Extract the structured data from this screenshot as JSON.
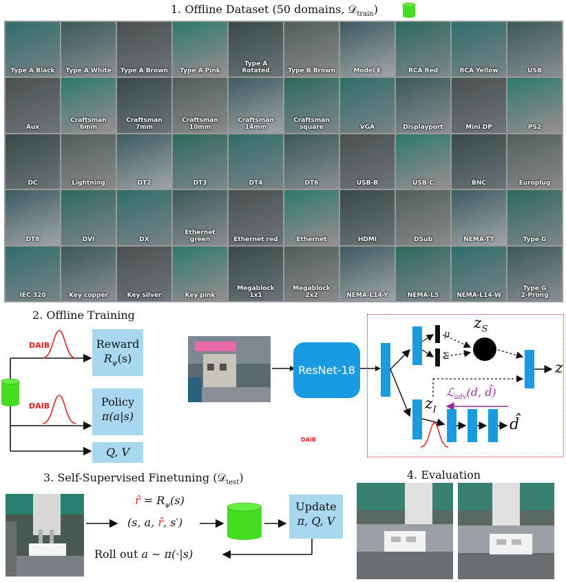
{
  "titles": {
    "s1": "1. Offline Dataset (50 domains, 𝒟",
    "s1_sub": "train",
    "s1_end": ")",
    "s2": "2. Offline Training",
    "s3": "3. Self-Supervised Finetuning (𝒟",
    "s3_sub": "test",
    "s3_end": ")",
    "s4": "4. Evaluation"
  },
  "dataset_tiles": [
    "Type A Black",
    "Type A White",
    "Type A Brown",
    "Type A Pink",
    "Type A Rotated",
    "Type B Brown",
    "Model E",
    "RCA Red",
    "RCA Yellow",
    "USB",
    "Aux",
    "Craftsman\n6mm",
    "Craftsman\n7mm",
    "Craftsman\n10mm",
    "Craftsman\n14mm",
    "Craftsman\nsquare",
    "VGA",
    "Displayport",
    "Mini DP",
    "PS2",
    "DC",
    "Lightning",
    "DT2",
    "DT3",
    "DT4",
    "DT6",
    "USB-B",
    "USB-C",
    "BNC",
    "Europlug",
    "DT8",
    "DVI",
    "DX",
    "Ethernet green",
    "Ethernet red",
    "Ethernet",
    "HDMI",
    "DSub",
    "NEMA-TT",
    "Type G",
    "IEC 320",
    "Key copper",
    "Key silver",
    "Key pink",
    "Megablock 1x1",
    "Megablock 2x2",
    "NEMA-L14-Y",
    "NEMA-L5",
    "NEMA-L14-W",
    "Type G\n2-Prong"
  ],
  "training": {
    "daib_label": "DAIB",
    "reward_title": "Reward",
    "reward_expr": "R",
    "reward_sub": "ψ",
    "reward_arg": "(s)",
    "policy_title": "Policy",
    "policy_expr": "π(a|s)",
    "qv": "Q, V",
    "resnet": "ResNet-18",
    "mu": "μ",
    "sigma": "Σ",
    "zs": "z",
    "zs_sub": "S",
    "zi": "z",
    "zi_sub": "I",
    "z": "z",
    "ladv": "ℒ",
    "ladv_sub": "adv",
    "ladv_args": "(d, d̂)",
    "dhat": "d̂"
  },
  "finetune": {
    "rhat_eq_l": "r̂",
    "rhat_eq_r": " = R",
    "rhat_eq_sub": "ψ",
    "rhat_eq_end": "(s)",
    "tuple_a": "(s, a, ",
    "tuple_r": "r̂",
    "tuple_b": ", s′)",
    "update": "Update",
    "update_vars": "π, Q, V",
    "rollout": "Roll out ",
    "rollout_expr": "a ∼ π(·|s)"
  },
  "colors": {
    "light_blue": "#a8d8f0",
    "dark_blue": "#1a9ae0",
    "db_green": "#44dd22",
    "daib_red": "#e02020",
    "ladv_purple": "#9a2aa0",
    "frame_red": "#e02020"
  }
}
